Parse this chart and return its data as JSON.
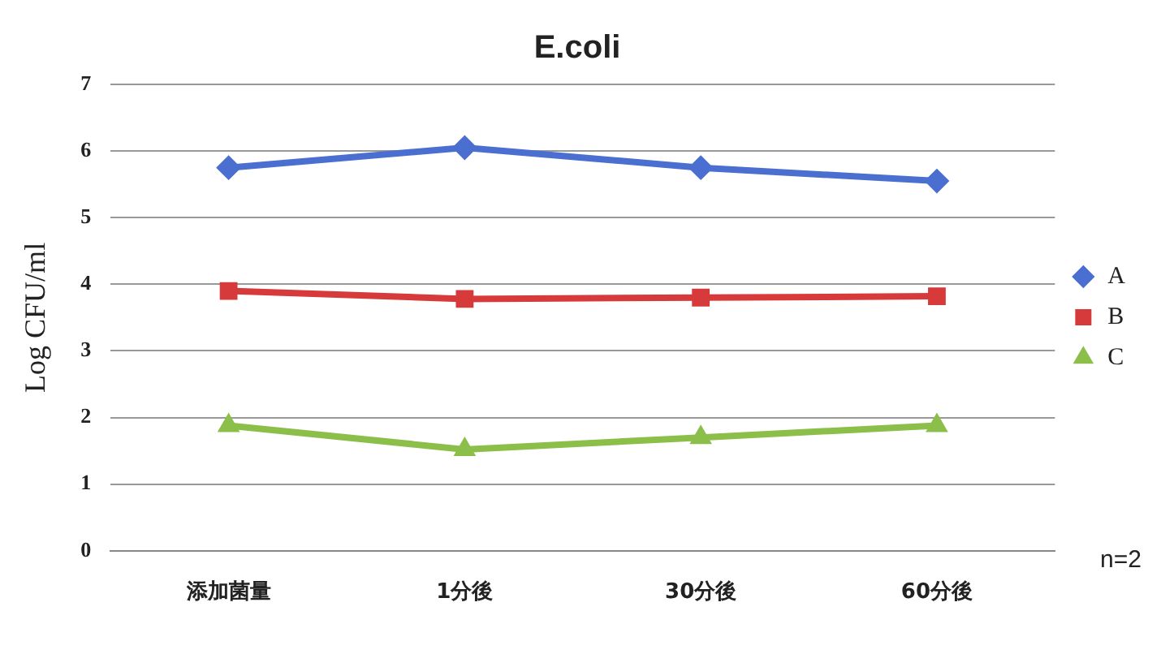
{
  "chart_data": {
    "type": "line",
    "title": "E.coli",
    "ylabel": "Log CFU/ml",
    "categories": [
      "添加菌量",
      "1分後",
      "30分後",
      "60分後"
    ],
    "series": [
      {
        "name": "A",
        "color": "#4a6fd0",
        "values": [
          5.75,
          6.05,
          5.75,
          5.55
        ],
        "marker": "diamond"
      },
      {
        "name": "B",
        "color": "#d63a3a",
        "values": [
          3.9,
          3.78,
          3.8,
          3.82
        ],
        "marker": "square"
      },
      {
        "name": "C",
        "color": "#8cbf4a",
        "values": [
          1.88,
          1.52,
          1.7,
          1.88
        ],
        "marker": "triangle"
      }
    ],
    "ylim": [
      0,
      7
    ],
    "yticks": [
      0,
      1,
      2,
      3,
      4,
      5,
      6,
      7
    ],
    "grid": "y",
    "legend": "right",
    "annotations": [
      "n=2"
    ]
  }
}
